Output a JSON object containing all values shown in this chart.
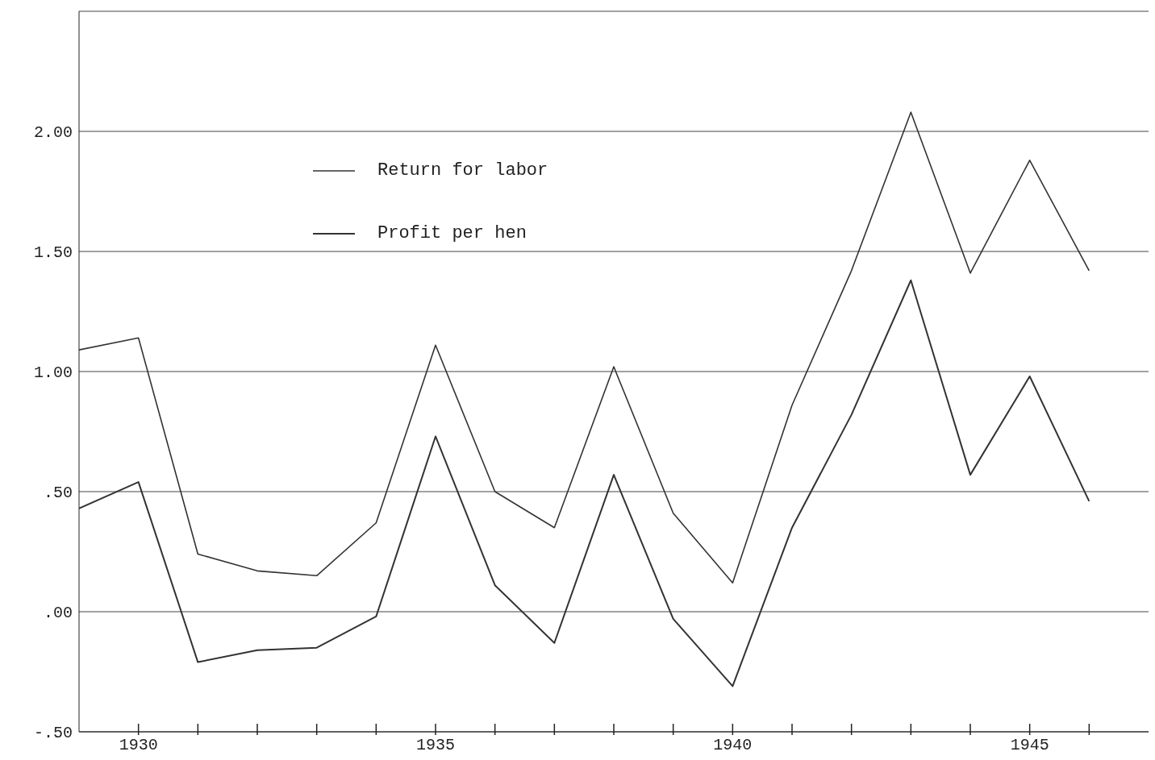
{
  "chart_data": {
    "type": "line",
    "x": [
      1929,
      1930,
      1931,
      1932,
      1933,
      1934,
      1935,
      1936,
      1937,
      1938,
      1939,
      1940,
      1941,
      1942,
      1943,
      1944,
      1945,
      1946
    ],
    "series": [
      {
        "name": "Return for labor",
        "color": "#333333",
        "values": [
          1.09,
          1.14,
          0.24,
          0.17,
          0.15,
          0.37,
          1.11,
          0.5,
          0.35,
          1.02,
          0.41,
          0.12,
          0.86,
          1.42,
          2.08,
          1.41,
          1.88,
          1.42
        ]
      },
      {
        "name": "Profit per hen",
        "color": "#333333",
        "values": [
          0.43,
          0.54,
          -0.21,
          -0.16,
          -0.15,
          -0.02,
          0.73,
          0.11,
          -0.13,
          0.57,
          -0.03,
          -0.31,
          0.35,
          0.82,
          1.38,
          0.57,
          0.98,
          0.46
        ]
      }
    ],
    "xlim": [
      1929,
      1947
    ],
    "xticks": [
      1930,
      {
        "value": 1931,
        "label": null
      },
      {
        "value": 1932,
        "label": null
      },
      {
        "value": 1933,
        "label": null
      },
      {
        "value": 1934,
        "label": null
      },
      1935,
      {
        "value": 1936,
        "label": null
      },
      {
        "value": 1937,
        "label": null
      },
      {
        "value": 1938,
        "label": null
      },
      {
        "value": 1939,
        "label": null
      },
      1940,
      {
        "value": 1941,
        "label": null
      },
      {
        "value": 1942,
        "label": null
      },
      {
        "value": 1943,
        "label": null
      },
      {
        "value": 1944,
        "label": null
      },
      1945,
      {
        "value": 1946,
        "label": null
      }
    ],
    "ylim": [
      -0.5,
      2.5
    ],
    "yticks": [
      {
        "value": -0.5,
        "label": "-.50"
      },
      {
        "value": 0,
        "label": ".00"
      },
      {
        "value": 0.5,
        "label": ".50"
      },
      {
        "value": 1,
        "label": "1.00"
      },
      {
        "value": 1.5,
        "label": "1.50"
      },
      {
        "value": 2,
        "label": "2.00"
      },
      {
        "value": 2.5,
        "label": null
      }
    ],
    "grid": "y",
    "legend": "top left",
    "marker": "none",
    "line_style": "solid"
  }
}
